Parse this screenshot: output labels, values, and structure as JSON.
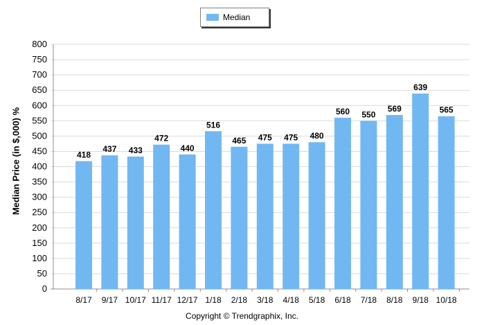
{
  "chart_data": {
    "type": "bar",
    "categories": [
      "8/17",
      "9/17",
      "10/17",
      "11/17",
      "12/17",
      "1/18",
      "2/18",
      "3/18",
      "4/18",
      "5/18",
      "6/18",
      "7/18",
      "8/18",
      "9/18",
      "10/18"
    ],
    "series": [
      {
        "name": "Median",
        "values": [
          418,
          437,
          433,
          472,
          440,
          516,
          465,
          475,
          475,
          480,
          560,
          550,
          569,
          639,
          565
        ]
      }
    ],
    "ylabel": "Median Price (in $,000) %",
    "xlabel": "",
    "ylim": [
      0,
      800
    ],
    "yticks": [
      0,
      50,
      100,
      150,
      200,
      250,
      300,
      350,
      400,
      450,
      500,
      550,
      600,
      650,
      700,
      750,
      800
    ],
    "grid": true,
    "legend_position": "top-center",
    "data_labels": true,
    "colors": {
      "bar": "#71b8f2",
      "grid": "#d9d9d9",
      "axis": "#8c8c8c"
    }
  },
  "legend": {
    "label": "Median"
  },
  "footer": {
    "copyright": "Copyright © Trendgraphix, Inc."
  }
}
